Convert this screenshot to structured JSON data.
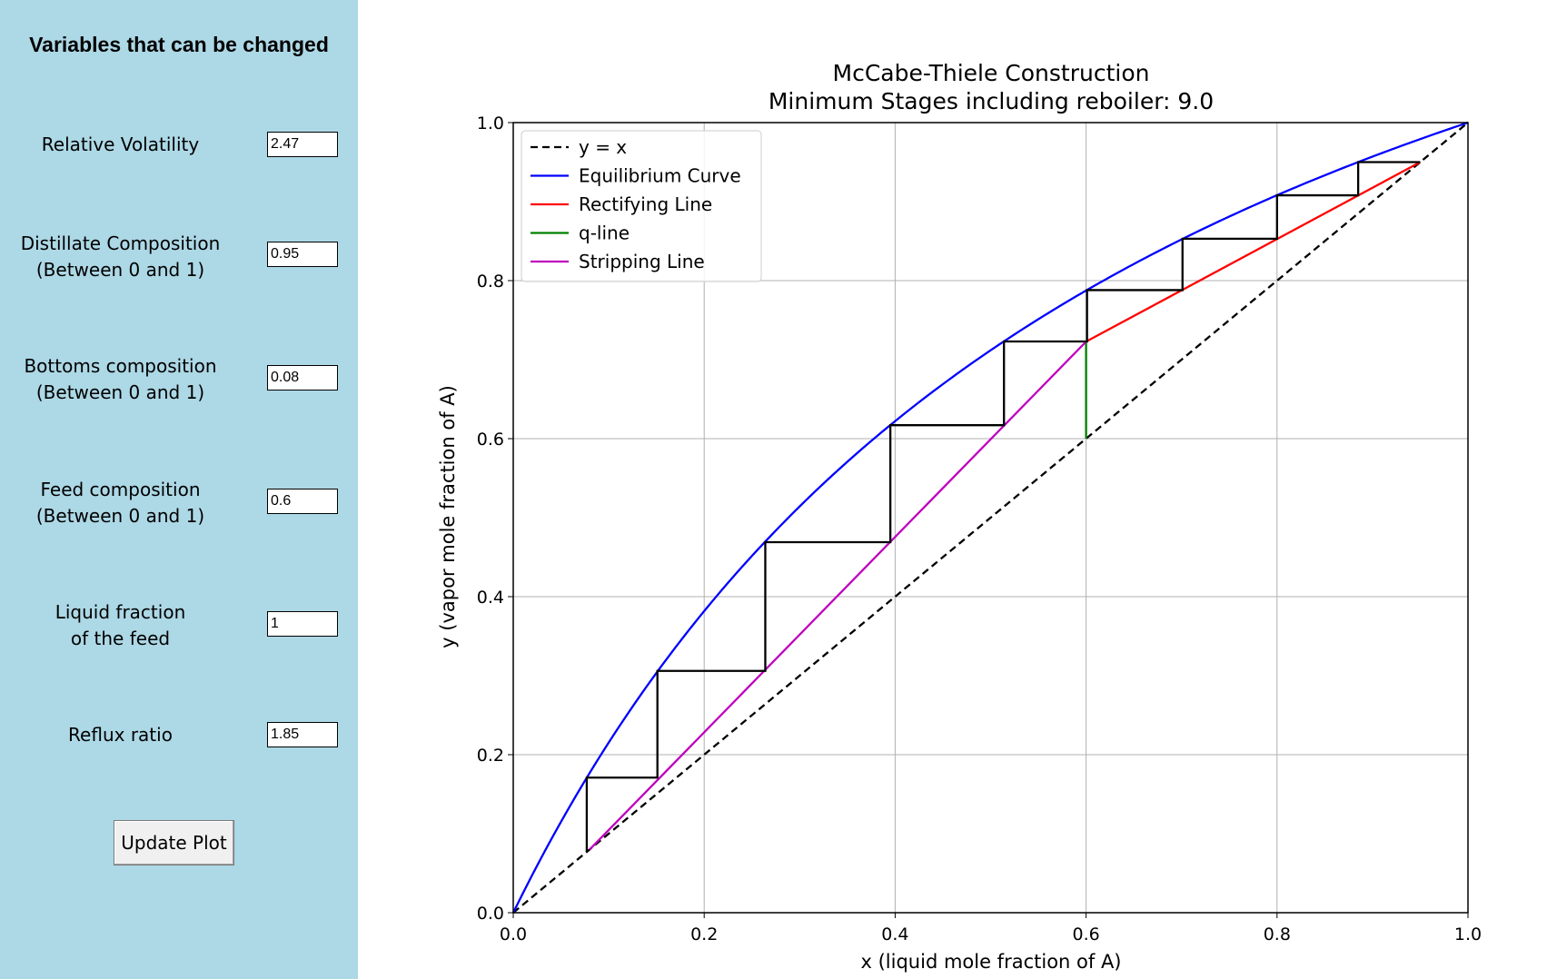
{
  "sidebar": {
    "title": "Variables that can be changed",
    "fields": [
      {
        "line1": "Relative Volatility",
        "line2": "",
        "value": "2.47"
      },
      {
        "line1": "Distillate Composition",
        "line2": "(Between 0 and 1)",
        "value": "0.95"
      },
      {
        "line1": "Bottoms composition",
        "line2": "(Between 0 and 1)",
        "value": "0.08"
      },
      {
        "line1": "Feed composition",
        "line2": "(Between 0 and 1)",
        "value": "0.6"
      },
      {
        "line1": "Liquid fraction",
        "line2": "of the feed",
        "value": "1"
      },
      {
        "line1": "Reflux ratio",
        "line2": "",
        "value": "1.85"
      }
    ],
    "button_label": "Update Plot"
  },
  "chart_data": {
    "type": "line",
    "title": "McCabe-Thiele Construction",
    "subtitle": "Minimum Stages including reboiler: 9.0",
    "xlabel": "x (liquid mole fraction of A)",
    "ylabel": "y (vapor mole fraction of A)",
    "xlim": [
      0.0,
      1.0
    ],
    "ylim": [
      0.0,
      1.0
    ],
    "xticks": [
      "0.0",
      "0.2",
      "0.4",
      "0.6",
      "0.8",
      "1.0"
    ],
    "yticks": [
      "0.0",
      "0.2",
      "0.4",
      "0.6",
      "0.8",
      "1.0"
    ],
    "grid": true,
    "legend_placement": "upper-left",
    "relative_volatility": 2.47,
    "series": [
      {
        "name": "y = x",
        "color": "#000000",
        "dashed": true,
        "points": [
          [
            0.0,
            0.0
          ],
          [
            1.0,
            1.0
          ]
        ]
      },
      {
        "name": "Equilibrium Curve",
        "color": "#0000ff",
        "dashed": false,
        "equation": "y = a*x/(1+(a-1)*x)",
        "x_range": [
          0.0,
          1.0
        ]
      },
      {
        "name": "Rectifying Line",
        "color": "#ff0000",
        "dashed": false,
        "points": [
          [
            0.6,
            0.7228
          ],
          [
            0.95,
            0.95
          ]
        ]
      },
      {
        "name": "q-line",
        "color": "#008000",
        "dashed": false,
        "points": [
          [
            0.6,
            0.6
          ],
          [
            0.6,
            0.7228
          ]
        ]
      },
      {
        "name": "Stripping Line",
        "color": "#bf00bf",
        "dashed": false,
        "points": [
          [
            0.08,
            0.08
          ],
          [
            0.6,
            0.7228
          ]
        ]
      }
    ],
    "stages": {
      "color": "#000000",
      "points": [
        [
          0.95,
          0.95
        ],
        [
          0.885,
          0.95
        ],
        [
          0.885,
          0.908
        ],
        [
          0.8,
          0.908
        ],
        [
          0.8,
          0.853
        ],
        [
          0.701,
          0.853
        ],
        [
          0.701,
          0.788
        ],
        [
          0.601,
          0.788
        ],
        [
          0.601,
          0.723
        ],
        [
          0.514,
          0.723
        ],
        [
          0.514,
          0.617
        ],
        [
          0.395,
          0.617
        ],
        [
          0.395,
          0.469
        ],
        [
          0.264,
          0.469
        ],
        [
          0.264,
          0.306
        ],
        [
          0.151,
          0.306
        ],
        [
          0.151,
          0.171
        ],
        [
          0.077,
          0.171
        ],
        [
          0.077,
          0.077
        ]
      ]
    }
  }
}
